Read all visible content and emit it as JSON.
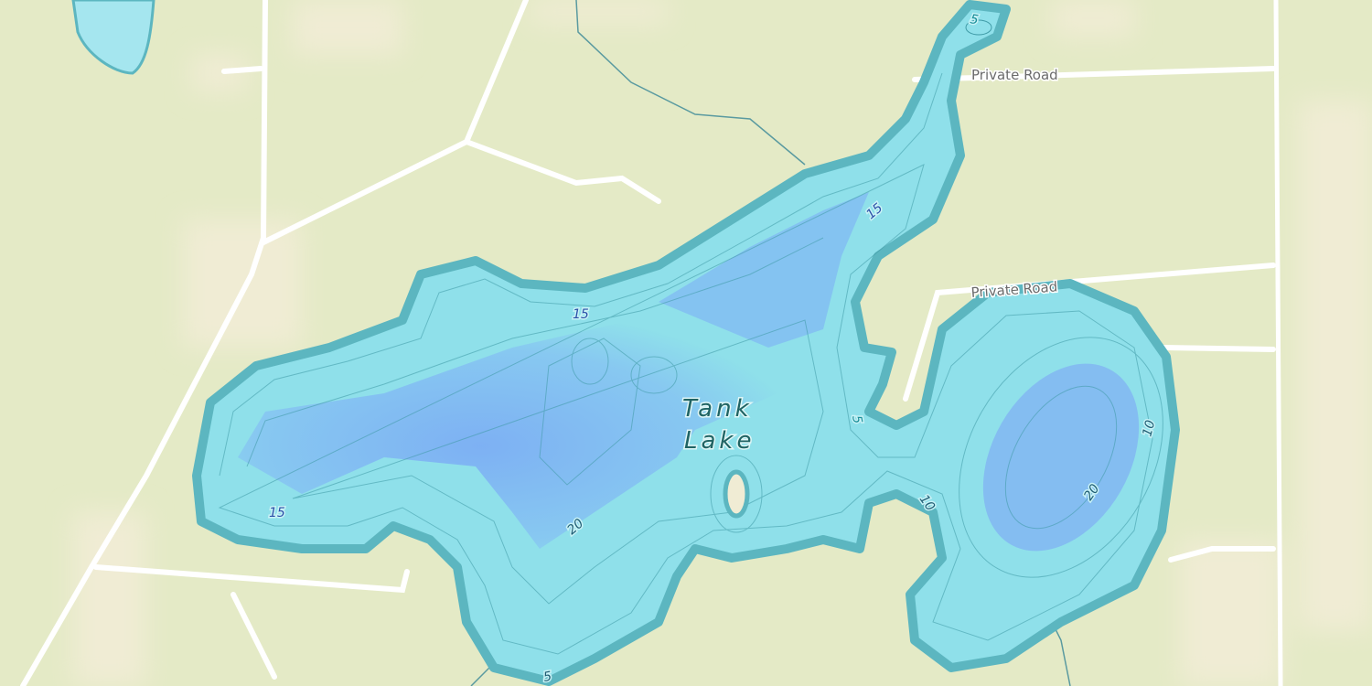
{
  "map": {
    "colors": {
      "land": "#e4eac6",
      "land_light": "#f0ecd4",
      "water_shallow": "#8fe0ea",
      "water_deep": "#7aa8f5",
      "shore": "#5cb6c0",
      "road": "#ffffff",
      "stream": "#5a9aa0"
    },
    "lake": {
      "name_line1": "Tank",
      "name_line2": "Lake"
    },
    "roads": [
      {
        "label": "Private Road"
      },
      {
        "label": "Private Road"
      }
    ],
    "depth_labels": [
      "5",
      "15",
      "15",
      "15",
      "20",
      "5",
      "10",
      "20",
      "10",
      "5"
    ]
  }
}
